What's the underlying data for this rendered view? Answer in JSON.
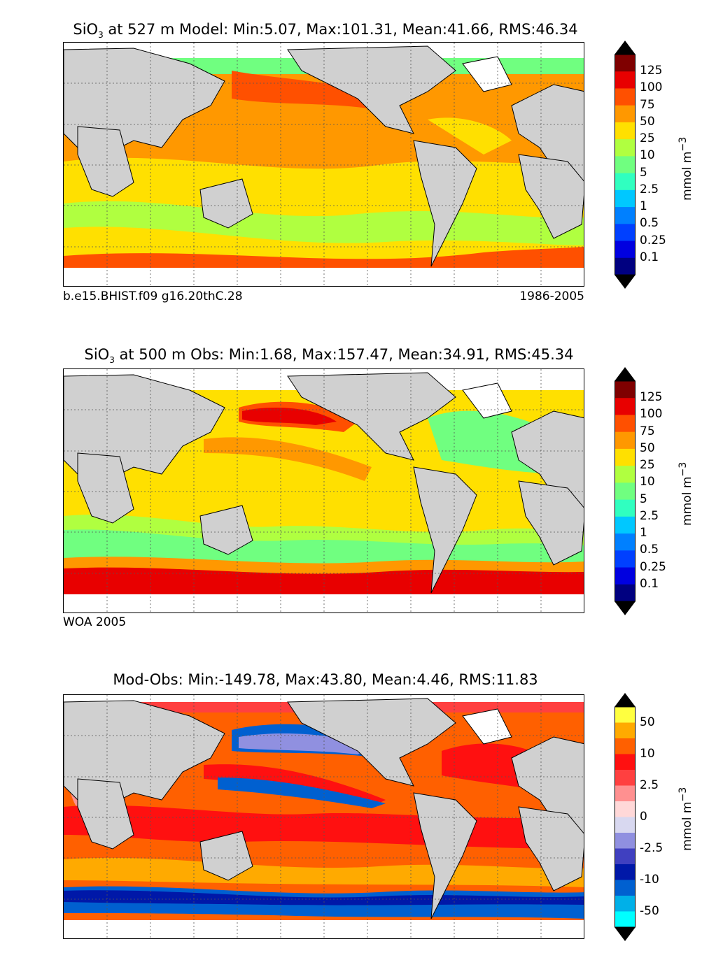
{
  "panels": [
    {
      "title_species": "SiO",
      "title_sub": "3",
      "title_rest": " at 527 m Model: Min:5.07, Max:101.31, Mean:41.66, RMS:46.34",
      "note_left": "b.e15.BHIST.f09 g16.20thC.28",
      "note_right": "1986-2005",
      "unit": "mmol m",
      "unit_sup": "−3",
      "colorbar_labels": [
        "125",
        "100",
        "75",
        "50",
        "25",
        "10",
        "5",
        "2.5",
        "1",
        "0.5",
        "0.25",
        "0.1"
      ],
      "colors": [
        "#7f0000",
        "#e80000",
        "#ff5000",
        "#ff9800",
        "#ffe000",
        "#b0ff40",
        "#70ff80",
        "#30ffc0",
        "#00c8ff",
        "#0080ff",
        "#0040ff",
        "#0000e0",
        "#000080"
      ]
    },
    {
      "title_species": "SiO",
      "title_sub": "3",
      "title_rest": " at 500 m Obs: Min:1.68, Max:157.47, Mean:34.91, RMS:45.34",
      "note_left": "WOA 2005",
      "note_right": "",
      "unit": "mmol m",
      "unit_sup": "−3",
      "colorbar_labels": [
        "125",
        "100",
        "75",
        "50",
        "25",
        "10",
        "5",
        "2.5",
        "1",
        "0.5",
        "0.25",
        "0.1"
      ],
      "colors": [
        "#7f0000",
        "#e80000",
        "#ff5000",
        "#ff9800",
        "#ffe000",
        "#b0ff40",
        "#70ff80",
        "#30ffc0",
        "#00c8ff",
        "#0080ff",
        "#0040ff",
        "#0000e0",
        "#000080"
      ]
    },
    {
      "title_species": "",
      "title_sub": "",
      "title_rest": "Mod-Obs: Min:-149.78, Max:43.80, Mean:4.46, RMS:11.83",
      "note_left": "",
      "note_right": "",
      "unit": "mmol m",
      "unit_sup": "−3",
      "colorbar_labels": [
        "50",
        "10",
        "2.5",
        "0",
        "-2.5",
        "-10",
        "-50"
      ],
      "colors": [
        "#ffff40",
        "#ffaa00",
        "#ff6000",
        "#ff1010",
        "#ff4040",
        "#ff9090",
        "#ffd8d8",
        "#d8d8f0",
        "#9090e0",
        "#4040c0",
        "#0018a8",
        "#0060d0",
        "#00b0e8",
        "#00ffff"
      ]
    }
  ]
}
